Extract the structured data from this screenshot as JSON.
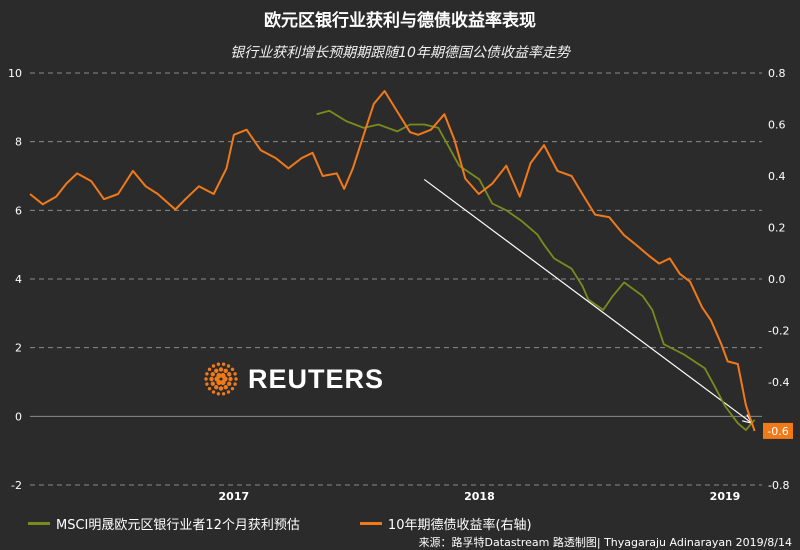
{
  "title": "欧元区银行业获利与德债收益率表现",
  "subtitle": "银行业获利增长预期期跟随10年期德国公债收益率走势",
  "logo_text": "REUTERS",
  "source": "来源：路孚特Datastream  路透制图| Thyagaraju Adinarayan 2019/8/14",
  "colors": {
    "msci": "#7a8b1e",
    "bund": "#f07a1a",
    "background": "#2b2b2b",
    "arrow": "#ffffff",
    "grid": "#8a8a8a"
  },
  "chart_data": {
    "type": "line",
    "title": "欧元区银行业获利与德债收益率表现",
    "subtitle": "银行业获利增长预期期跟随10年期德国公债收益率走势",
    "x_range": [
      "2016-09",
      "2019-08"
    ],
    "x_ticks": [
      "2017",
      "2018",
      "2019"
    ],
    "y_left": {
      "range": [
        -2,
        10
      ],
      "ticks": [
        "-2",
        "0",
        "2",
        "4",
        "6",
        "8",
        "10"
      ]
    },
    "y_right": {
      "range": [
        -0.8,
        0.8
      ],
      "ticks": [
        "-0.8",
        "-0.6",
        "-0.4",
        "-0.2",
        "0.0",
        "0.2",
        "0.4",
        "0.6",
        "0.8"
      ]
    },
    "grid": "horizontal dashed",
    "legend_position": "bottom",
    "last_value_label": "-0.6",
    "series": [
      {
        "name": "MSCI明晟欧元区银行业者12个月获利预估",
        "axis": "left",
        "color": "#7a8b1e",
        "x": [
          "2017-11-01",
          "2017-11-20",
          "2017-12-15",
          "2018-01-10",
          "2018-02-01",
          "2018-03-01",
          "2018-03-20",
          "2018-04-10",
          "2018-05-01",
          "2018-06-01",
          "2018-07-01",
          "2018-07-20",
          "2018-08-10",
          "2018-09-01",
          "2018-09-25",
          "2018-10-05",
          "2018-10-20",
          "2018-11-15",
          "2018-12-01",
          "2018-12-10",
          "2019-01-01",
          "2019-01-15",
          "2019-02-01",
          "2019-03-01",
          "2019-03-15",
          "2019-04-01",
          "2019-05-01",
          "2019-06-01",
          "2019-06-15",
          "2019-07-01",
          "2019-07-20",
          "2019-08-01",
          "2019-08-14"
        ],
        "values": [
          8.8,
          8.9,
          8.6,
          8.4,
          8.5,
          8.3,
          8.5,
          8.5,
          8.4,
          7.3,
          6.9,
          6.2,
          6.0,
          5.7,
          5.3,
          5.0,
          4.6,
          4.3,
          3.8,
          3.4,
          3.1,
          3.5,
          3.9,
          3.5,
          3.1,
          2.1,
          1.8,
          1.4,
          0.9,
          0.3,
          -0.2,
          -0.4,
          -0.1
        ]
      },
      {
        "name": "10年期德债收益率(右轴)",
        "axis": "right",
        "color": "#f07a1a",
        "x": [
          "2016-09-01",
          "2016-09-20",
          "2016-10-10",
          "2016-10-25",
          "2016-11-10",
          "2016-12-01",
          "2016-12-20",
          "2017-01-10",
          "2017-02-01",
          "2017-02-20",
          "2017-03-10",
          "2017-04-05",
          "2017-04-20",
          "2017-05-10",
          "2017-06-01",
          "2017-06-20",
          "2017-07-01",
          "2017-07-20",
          "2017-08-10",
          "2017-09-01",
          "2017-09-20",
          "2017-10-10",
          "2017-10-26",
          "2017-11-10",
          "2017-12-01",
          "2017-12-12",
          "2017-12-25",
          "2018-01-10",
          "2018-01-25",
          "2018-02-10",
          "2018-03-01",
          "2018-03-20",
          "2018-04-01",
          "2018-04-20",
          "2018-05-10",
          "2018-05-25",
          "2018-06-10",
          "2018-06-30",
          "2018-07-20",
          "2018-08-10",
          "2018-08-30",
          "2018-09-15",
          "2018-10-05",
          "2018-10-25",
          "2018-11-15",
          "2018-12-01",
          "2018-12-20",
          "2019-01-10",
          "2019-02-01",
          "2019-02-20",
          "2019-03-10",
          "2019-03-25",
          "2019-04-10",
          "2019-04-25",
          "2019-05-10",
          "2019-05-28",
          "2019-06-10",
          "2019-06-25",
          "2019-07-05",
          "2019-07-20",
          "2019-08-01",
          "2019-08-14"
        ],
        "values": [
          0.33,
          0.29,
          0.32,
          0.37,
          0.41,
          0.38,
          0.31,
          0.33,
          0.42,
          0.36,
          0.33,
          0.27,
          0.31,
          0.36,
          0.33,
          0.43,
          0.56,
          0.58,
          0.5,
          0.47,
          0.43,
          0.47,
          0.49,
          0.4,
          0.41,
          0.35,
          0.43,
          0.56,
          0.68,
          0.73,
          0.65,
          0.57,
          0.56,
          0.58,
          0.64,
          0.54,
          0.39,
          0.33,
          0.37,
          0.44,
          0.32,
          0.45,
          0.52,
          0.42,
          0.4,
          0.33,
          0.25,
          0.24,
          0.17,
          0.13,
          0.09,
          0.06,
          0.08,
          0.02,
          -0.01,
          -0.11,
          -0.16,
          -0.25,
          -0.32,
          -0.33,
          -0.49,
          -0.59
        ]
      }
    ],
    "annotations": [
      {
        "type": "arrow",
        "from": [
          "2018-04-10",
          6.9
        ],
        "to": [
          "2019-08-10",
          -0.2
        ],
        "axis": "left"
      }
    ]
  }
}
